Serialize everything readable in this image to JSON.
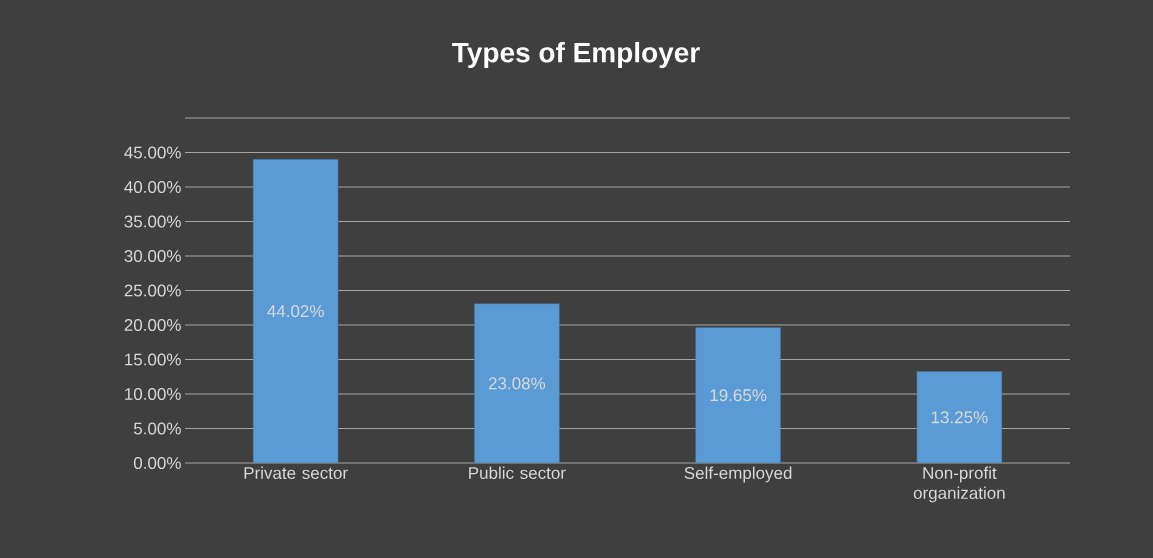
{
  "chart_data": {
    "type": "bar",
    "title": "Types of Employer",
    "categories": [
      "Private sector",
      "Public sector",
      "Self-employed",
      "Non-profit organization"
    ],
    "values": [
      44.02,
      23.08,
      19.65,
      13.25
    ],
    "value_labels": [
      "44.02%",
      "23.08%",
      "19.65%",
      "13.25%"
    ],
    "color": "#5b9bd5",
    "ylim": [
      0,
      50
    ],
    "yticks": [
      {
        "value": 0,
        "label": "0.00%"
      },
      {
        "value": 5,
        "label": "5.00%"
      },
      {
        "value": 10,
        "label": "10.00%"
      },
      {
        "value": 15,
        "label": "15.00%"
      },
      {
        "value": 20,
        "label": "20.00%"
      },
      {
        "value": 25,
        "label": "25.00%"
      },
      {
        "value": 30,
        "label": "30.00%"
      },
      {
        "value": 35,
        "label": "35.00%"
      },
      {
        "value": 40,
        "label": "40.00%"
      },
      {
        "value": 45,
        "label": "45.00%"
      },
      {
        "value": 50,
        "label": null
      }
    ],
    "grid": "y"
  }
}
